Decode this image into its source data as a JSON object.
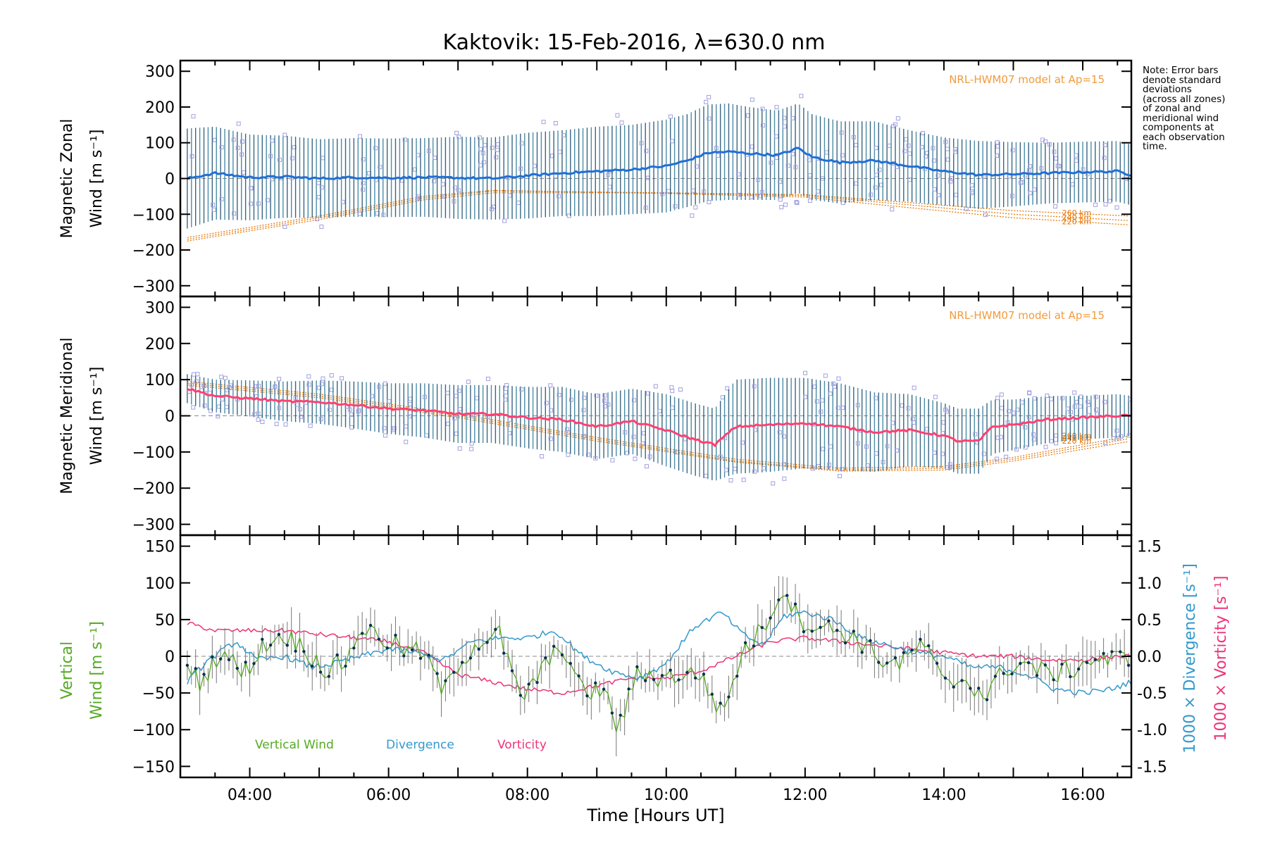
{
  "chart_data": [
    {
      "type": "line",
      "title": "Kaktovik: 15-Feb-2016, λ=630.0 nm",
      "panel": "zonal",
      "ylabel_line1": "Magnetic Zonal",
      "ylabel_line2": "Wind [m s⁻¹]",
      "ylim": [
        -330,
        330
      ],
      "yticks": [
        -300,
        -200,
        -100,
        0,
        100,
        200,
        300
      ],
      "xlim": [
        3.0,
        16.7
      ],
      "model_label": "NRL-HWM07 model at Ap=15",
      "model_altitudes": [
        "260 km",
        "240 km",
        "220 km"
      ],
      "model_curves": [
        {
          "name": "260 km",
          "x": [
            3.1,
            5.0,
            6.5,
            7.5,
            10.0,
            12.0,
            13.0,
            15.0,
            16.7
          ],
          "y": [
            -175,
            -115,
            -60,
            -40,
            -40,
            -45,
            -60,
            -90,
            -105
          ]
        },
        {
          "name": "240 km",
          "x": [
            3.1,
            5.0,
            6.5,
            7.5,
            10.0,
            12.0,
            13.0,
            15.0,
            16.7
          ],
          "y": [
            -170,
            -110,
            -55,
            -35,
            -40,
            -48,
            -65,
            -100,
            -118
          ]
        },
        {
          "name": "220 km",
          "x": [
            3.1,
            5.0,
            6.5,
            7.5,
            10.0,
            12.0,
            13.0,
            15.0,
            16.7
          ],
          "y": [
            -165,
            -105,
            -50,
            -33,
            -42,
            -52,
            -72,
            -110,
            -130
          ]
        }
      ],
      "series": [
        {
          "name": "mean",
          "x": [
            3.1,
            3.5,
            4.0,
            4.5,
            5.0,
            5.5,
            6.0,
            6.5,
            7.0,
            7.5,
            8.0,
            8.5,
            9.0,
            9.5,
            10.0,
            10.3,
            10.6,
            10.9,
            11.2,
            11.6,
            11.9,
            12.1,
            12.5,
            13.0,
            13.5,
            14.0,
            14.5,
            15.0,
            15.5,
            16.0,
            16.5,
            16.7
          ],
          "y": [
            0,
            15,
            3,
            5,
            0,
            3,
            2,
            3,
            2,
            0,
            8,
            15,
            20,
            25,
            35,
            50,
            72,
            75,
            70,
            65,
            85,
            60,
            45,
            50,
            35,
            20,
            10,
            12,
            15,
            18,
            20,
            10
          ]
        }
      ],
      "errorbar_halfwidth": [
        140,
        130,
        120,
        115,
        110,
        110,
        110,
        110,
        115,
        115,
        120,
        120,
        125,
        125,
        130,
        130,
        135,
        135,
        130,
        125,
        125,
        120,
        115,
        110,
        100,
        95,
        95,
        90,
        85,
        85,
        85,
        85
      ]
    },
    {
      "type": "line",
      "panel": "meridional",
      "ylabel_line1": "Magnetic Meridional",
      "ylabel_line2": "Wind [m s⁻¹]",
      "ylim": [
        -330,
        330
      ],
      "yticks": [
        -300,
        -200,
        -100,
        0,
        100,
        200,
        300
      ],
      "xlim": [
        3.0,
        16.7
      ],
      "model_label": "NRL-HWM07 model at Ap=15",
      "model_altitudes": [
        "260 km",
        "240 km",
        "220 km"
      ],
      "model_curves": [
        {
          "name": "260 km",
          "x": [
            3.1,
            5.0,
            7.0,
            9.0,
            11.0,
            12.5,
            14.0,
            15.0,
            16.7
          ],
          "y": [
            95,
            60,
            5,
            -60,
            -120,
            -145,
            -140,
            -115,
            -55
          ]
        },
        {
          "name": "240 km",
          "x": [
            3.1,
            5.0,
            7.0,
            9.0,
            11.0,
            12.5,
            14.0,
            15.0,
            16.7
          ],
          "y": [
            90,
            55,
            0,
            -65,
            -125,
            -150,
            -145,
            -120,
            -62
          ]
        },
        {
          "name": "220 km",
          "x": [
            3.1,
            5.0,
            7.0,
            9.0,
            11.0,
            12.5,
            14.0,
            15.0,
            16.7
          ],
          "y": [
            85,
            50,
            -5,
            -70,
            -128,
            -153,
            -150,
            -125,
            -70
          ]
        }
      ],
      "series": [
        {
          "name": "mean",
          "x": [
            3.1,
            3.5,
            4.0,
            4.5,
            5.0,
            5.5,
            6.0,
            6.5,
            7.0,
            7.5,
            8.0,
            8.5,
            9.0,
            9.5,
            10.0,
            10.4,
            10.7,
            11.0,
            11.5,
            12.0,
            12.5,
            13.0,
            13.5,
            14.0,
            14.2,
            14.5,
            14.7,
            15.0,
            15.5,
            16.0,
            16.5,
            16.7
          ],
          "y": [
            75,
            55,
            48,
            40,
            38,
            30,
            20,
            15,
            5,
            5,
            -5,
            -10,
            -30,
            -15,
            -40,
            -65,
            -80,
            -30,
            -25,
            -20,
            -30,
            -45,
            -40,
            -55,
            -70,
            -70,
            -30,
            -25,
            -10,
            -5,
            0,
            0
          ]
        }
      ],
      "errorbar_halfwidth": [
        40,
        45,
        50,
        55,
        60,
        65,
        70,
        75,
        80,
        80,
        85,
        90,
        90,
        90,
        100,
        100,
        100,
        130,
        130,
        125,
        120,
        110,
        100,
        90,
        90,
        90,
        75,
        70,
        65,
        60,
        60,
        55
      ]
    },
    {
      "type": "line",
      "panel": "vertical",
      "ylabel_left_line1": "Vertical",
      "ylabel_left_line2": "Wind [m s⁻¹]",
      "ylabel_right_div": "1000 × Divergence [s⁻¹]",
      "ylabel_right_vort": "1000 × Vorticity [s⁻¹]",
      "ylim": [
        -165,
        165
      ],
      "yticks": [
        -150,
        -100,
        -50,
        0,
        50,
        100,
        150
      ],
      "y2lim": [
        -1.65,
        1.65
      ],
      "y2ticks": [
        -1.5,
        -1.0,
        -0.5,
        0.0,
        0.5,
        1.0,
        1.5
      ],
      "xlim": [
        3.0,
        16.7
      ],
      "xticks": [
        "04:00",
        "06:00",
        "08:00",
        "10:00",
        "12:00",
        "14:00",
        "16:00"
      ],
      "xtick_values": [
        4,
        6,
        8,
        10,
        12,
        14,
        16
      ],
      "xlabel": "Time [Hours UT]",
      "legend": [
        "Vertical Wind",
        "Divergence",
        "Vorticity"
      ],
      "colors": {
        "vertical": "#55aa22",
        "divergence": "#3399cc",
        "vorticity": "#ee3377",
        "mean_zonal": "#1f6fd6",
        "mean_meridional": "#ff4070",
        "model": "#e67300",
        "scatter": "#a0a0e0"
      },
      "series": [
        {
          "name": "Vertical Wind",
          "x": [
            3.1,
            3.3,
            3.6,
            3.9,
            4.2,
            4.5,
            4.8,
            5.1,
            5.4,
            5.6,
            5.9,
            6.2,
            6.5,
            6.8,
            7.0,
            7.3,
            7.6,
            7.9,
            8.2,
            8.5,
            8.8,
            9.1,
            9.3,
            9.6,
            9.9,
            10.2,
            10.5,
            10.8,
            11.1,
            11.4,
            11.7,
            11.9,
            12.2,
            12.5,
            12.8,
            13.1,
            13.4,
            13.7,
            14.0,
            14.3,
            14.6,
            14.9,
            15.2,
            15.5,
            15.8,
            16.1,
            16.4,
            16.7
          ],
          "y": [
            -20,
            -35,
            10,
            -25,
            15,
            30,
            10,
            -20,
            -5,
            40,
            25,
            10,
            5,
            -50,
            -10,
            20,
            30,
            -60,
            -20,
            15,
            -50,
            -45,
            -100,
            -20,
            -30,
            -25,
            -25,
            -80,
            5,
            40,
            95,
            50,
            40,
            35,
            20,
            -5,
            -10,
            20,
            -40,
            -30,
            -55,
            -15,
            -10,
            -25,
            -20,
            -5,
            -5,
            0
          ]
        },
        {
          "name": "Divergence",
          "x": [
            3.1,
            3.4,
            3.8,
            4.1,
            4.5,
            4.9,
            5.2,
            5.6,
            6.0,
            6.4,
            6.8,
            7.2,
            7.6,
            8.0,
            8.4,
            8.8,
            9.2,
            9.6,
            10.0,
            10.4,
            10.8,
            11.1,
            11.4,
            11.7,
            12.0,
            12.4,
            12.8,
            13.2,
            13.6,
            14.0,
            14.4,
            14.8,
            15.2,
            15.6,
            16.0,
            16.4,
            16.7
          ],
          "y": [
            -0.35,
            -0.05,
            0.2,
            -0.05,
            0.0,
            -0.15,
            -0.1,
            0.0,
            0.1,
            0.05,
            -0.05,
            0.2,
            0.25,
            0.25,
            0.35,
            0.0,
            -0.2,
            -0.3,
            -0.1,
            0.4,
            0.6,
            0.3,
            0.15,
            0.55,
            0.6,
            0.5,
            0.25,
            0.15,
            0.05,
            0.0,
            -0.15,
            -0.15,
            -0.25,
            -0.45,
            -0.5,
            -0.45,
            -0.35
          ]
        },
        {
          "name": "Vorticity",
          "x": [
            3.1,
            3.5,
            4.0,
            4.5,
            5.0,
            5.5,
            6.0,
            6.5,
            7.0,
            7.5,
            8.0,
            8.5,
            9.0,
            9.5,
            10.0,
            10.5,
            11.0,
            11.5,
            12.0,
            12.5,
            13.0,
            13.5,
            14.0,
            14.5,
            15.0,
            15.5,
            16.0,
            16.5,
            16.7
          ],
          "y": [
            0.45,
            0.35,
            0.35,
            0.35,
            0.3,
            0.25,
            0.2,
            0.05,
            -0.25,
            -0.35,
            -0.45,
            -0.5,
            -0.4,
            -0.3,
            -0.3,
            -0.2,
            0.0,
            0.2,
            0.25,
            0.2,
            0.15,
            0.1,
            0.05,
            0.0,
            0.0,
            -0.05,
            -0.05,
            0.0,
            0.0
          ]
        }
      ]
    }
  ],
  "note": {
    "lines": [
      "Note: Error bars",
      "denote standard",
      "deviations",
      "(across all zones)",
      "of zonal and",
      "meridional wind",
      "components at",
      "each observation",
      "time."
    ]
  }
}
